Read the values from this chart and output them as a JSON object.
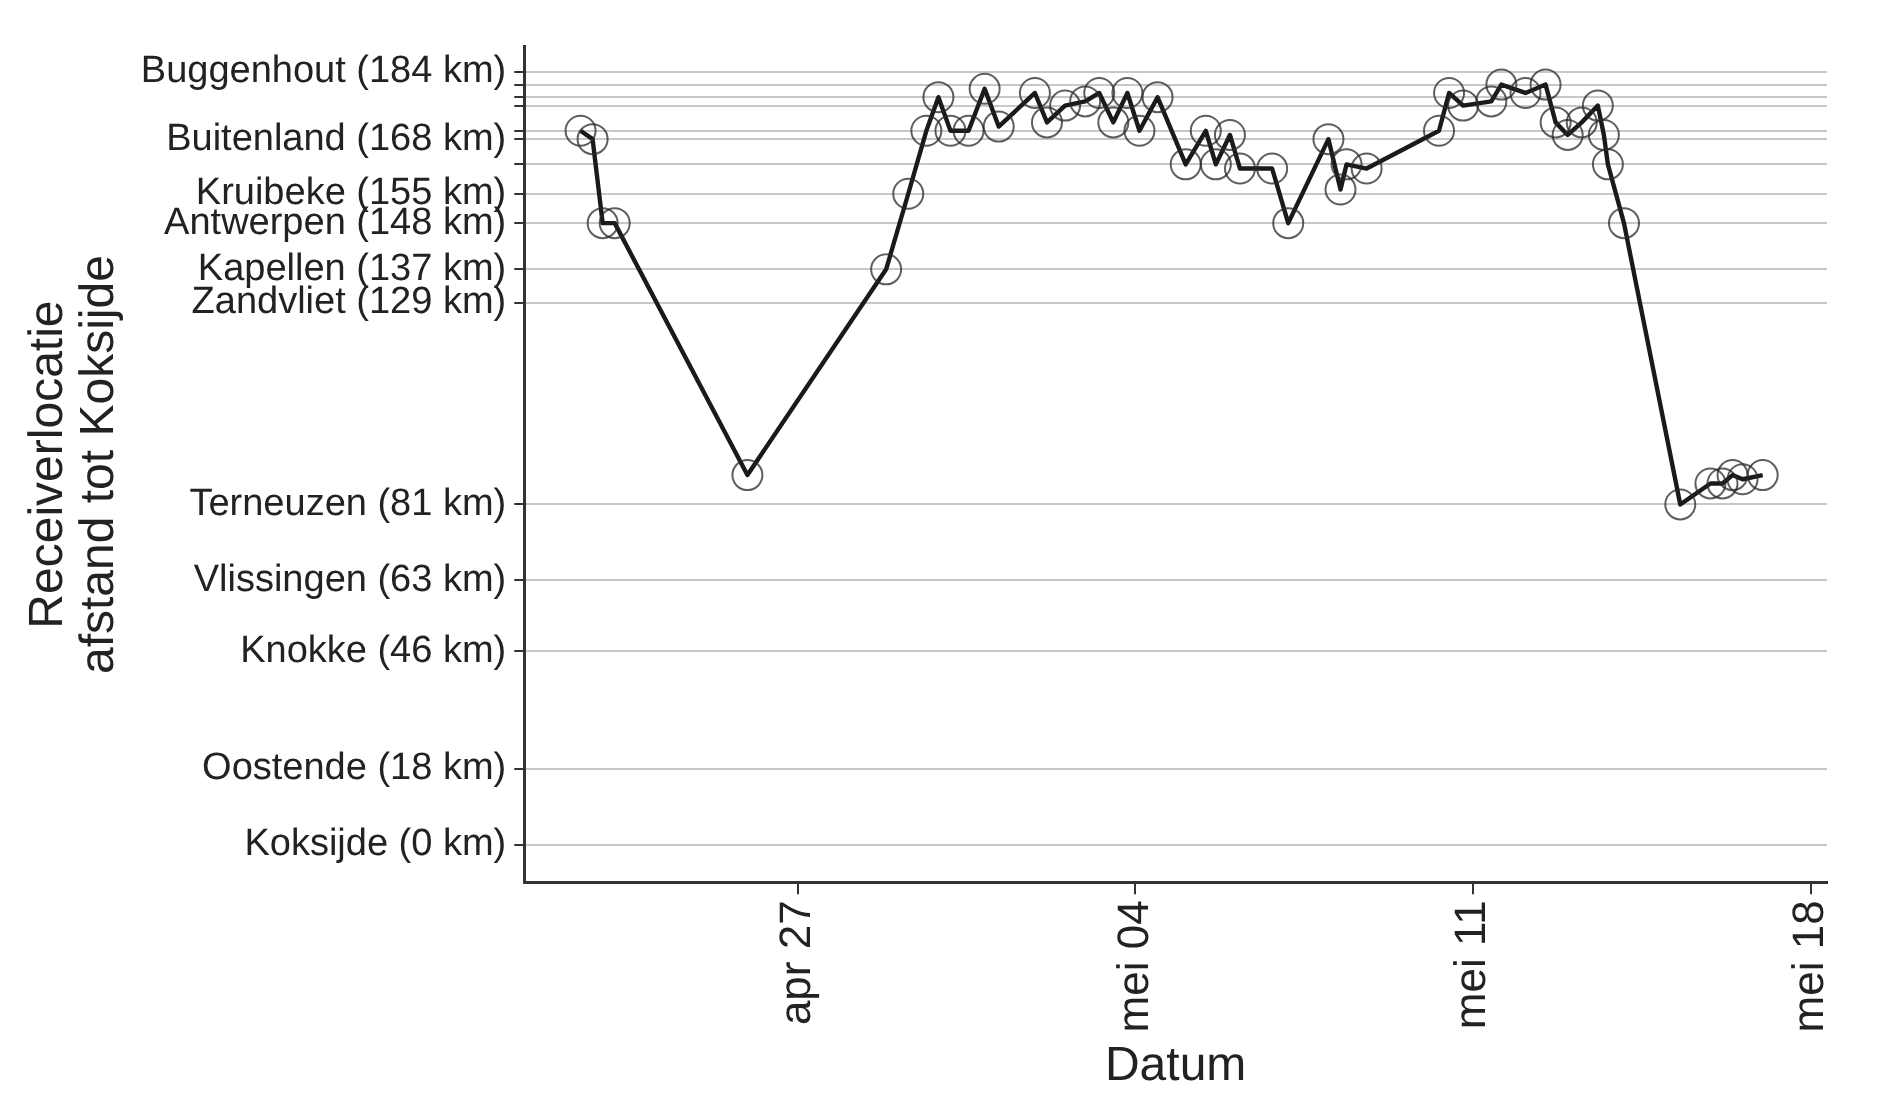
{
  "chart_data": {
    "type": "line",
    "xlabel": "Datum",
    "ylabel": "Receiverlocatie\nafstand tot Koksijde",
    "xlim": [
      "--04-21T08:00",
      "--05-18T08:00"
    ],
    "xticks": [
      {
        "value": "--04-27",
        "label": "apr 27"
      },
      {
        "value": "--05-04",
        "label": "mei 04"
      },
      {
        "value": "--05-11",
        "label": "mei 11"
      },
      {
        "value": "--05-18",
        "label": "mei 18"
      }
    ],
    "ylim": [
      -9,
      190
    ],
    "yticks": [
      {
        "value": 0,
        "label": "Koksijde (0 km)"
      },
      {
        "value": 18,
        "label": "Oostende (18 km)"
      },
      {
        "value": 46,
        "label": "Knokke (46 km)"
      },
      {
        "value": 63,
        "label": "Vlissingen (63 km)"
      },
      {
        "value": 81,
        "label": "Terneuzen (81 km)"
      },
      {
        "value": 129,
        "label": "Zandvliet (129 km)"
      },
      {
        "value": 137,
        "label": "Kapellen (137 km)"
      },
      {
        "value": 148,
        "label": "Antwerpen (148 km)"
      },
      {
        "value": 155,
        "label": "Kruibeke (155 km)"
      },
      {
        "value": 162,
        "label": null
      },
      {
        "value": 168,
        "label": "Buitenland (168 km)"
      },
      {
        "value": 170,
        "label": null
      },
      {
        "value": 176,
        "label": null
      },
      {
        "value": 178,
        "label": null
      },
      {
        "value": 181,
        "label": null
      },
      {
        "value": 184,
        "label": "Buggenhout (184 km)"
      }
    ],
    "grid": "y",
    "legend": false,
    "marker": "circle",
    "line_style": "solid",
    "x": [
      "--04-22T12:00",
      "--04-22T18:00",
      "--04-22T23:00",
      "--04-23T05:00",
      "--04-25T23:00",
      "--04-28T20:00",
      "--04-29T07:00",
      "--04-29T16:00",
      "--04-29T22:00",
      "--04-30T04:00",
      "--04-30T13:00",
      "--04-30T21:00",
      "--05-01T04:00",
      "--05-01T22:00",
      "--05-02T04:00",
      "--05-02T13:00",
      "--05-02T23:00",
      "--05-03T06:00",
      "--05-03T13:00",
      "--05-03T20:00",
      "--05-04T02:00",
      "--05-04T11:00",
      "--05-05T01:00",
      "--05-05T11:00",
      "--05-05T16:00",
      "--05-05T23:00",
      "--05-06T04:00",
      "--05-06T20:00",
      "--05-07T04:00",
      "--05-08T00:00",
      "--05-08T06:00",
      "--05-08T09:00",
      "--05-08T19:00",
      "--05-10T07:00",
      "--05-10T12:00",
      "--05-10T19:00",
      "--05-11T09:00",
      "--05-11T14:00",
      "--05-12T02:00",
      "--05-12T12:00",
      "--05-12T17:00",
      "--05-12T23:00",
      "--05-13T06:00",
      "--05-13T14:00",
      "--05-13T17:00",
      "--05-13T19:00",
      "--05-14T03:00",
      "--05-15T07:00",
      "--05-15T22:00",
      "--05-16T04:00",
      "--05-16T09:00",
      "--05-16T14:00",
      "--05-17T00:00"
    ],
    "series": [
      {
        "color": "#1a1a1a",
        "values": [
          170,
          168,
          148,
          148,
          88,
          137,
          155,
          170,
          178,
          170,
          170,
          180,
          171,
          179,
          172,
          176,
          177,
          179,
          172,
          179,
          170,
          178,
          162,
          170,
          162,
          169,
          161,
          161,
          148,
          168,
          156,
          162,
          161,
          170,
          179,
          176,
          177,
          181,
          179,
          181,
          172,
          169,
          172,
          176,
          169,
          162,
          148,
          81,
          86,
          86,
          88,
          87,
          88
        ]
      }
    ]
  }
}
